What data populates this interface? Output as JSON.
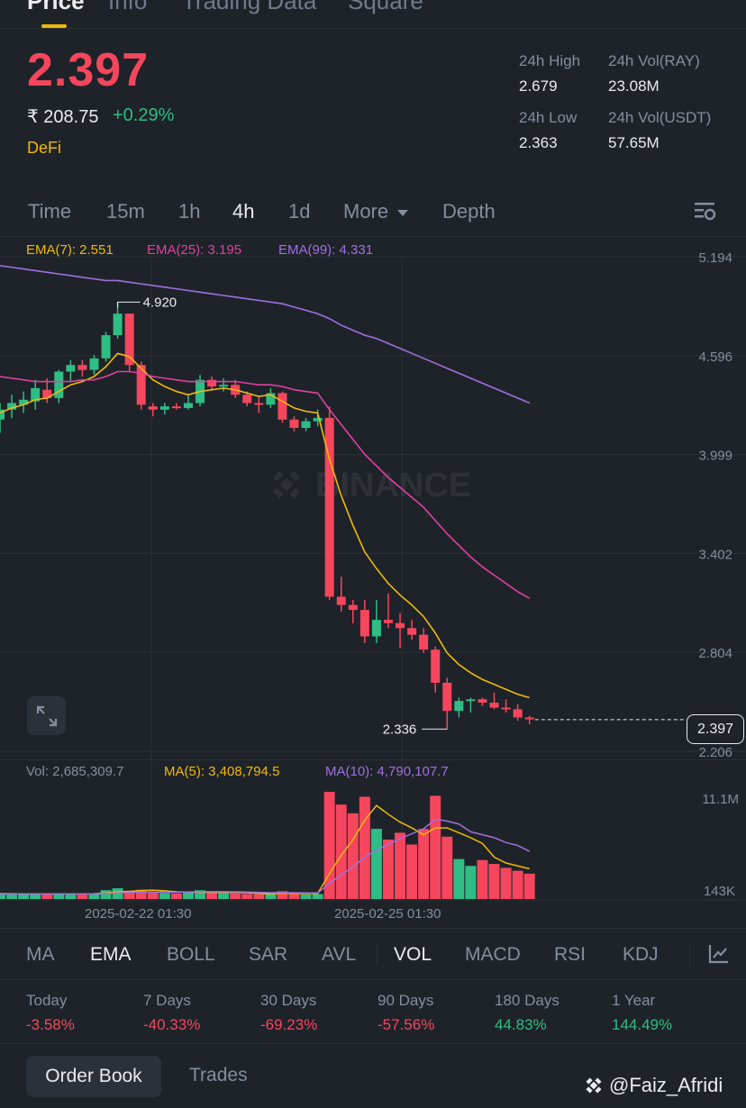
{
  "top_tabs": [
    "Price",
    "Info",
    "Trading Data",
    "Square"
  ],
  "ticker": {
    "price": "2.397",
    "inr_price": "₹ 208.75",
    "change": "+0.29%",
    "tag": "DeFi",
    "stats": {
      "high_label": "24h High",
      "high_value": "2.679",
      "vol_ray_label": "24h Vol(RAY)",
      "vol_ray_value": "23.08M",
      "low_label": "24h Low",
      "low_value": "2.363",
      "vol_usdt_label": "24h Vol(USDT)",
      "vol_usdt_value": "57.65M"
    }
  },
  "timeframes": [
    "Time",
    "15m",
    "1h",
    "4h",
    "1d",
    "More",
    "Depth"
  ],
  "active_timeframe": "4h",
  "ema_legend": {
    "ema7": "EMA(7): 2.551",
    "ema25": "EMA(25): 3.195",
    "ema99": "EMA(99): 4.331"
  },
  "colors": {
    "up": "#2ebd85",
    "down": "#f6465d",
    "ema7": "#f0b90b",
    "ema25": "#e040a0",
    "ema99": "#a070e0",
    "background": "#1e2329",
    "accent": "#f0b90b"
  },
  "chart_data": [
    {
      "type": "candlestick",
      "title": "",
      "y_ticks": [
        "5.194",
        "4.596",
        "3.999",
        "3.402",
        "2.804",
        "2.206"
      ],
      "ylim": [
        2.206,
        5.194
      ],
      "x_tick_labels": [
        "2025-02-22 01:30",
        "2025-02-25 01:30"
      ],
      "annotations": {
        "high_marker": "4.920",
        "low_marker": "2.336",
        "last_price": "2.397"
      },
      "candles": [
        {
          "o": 4.21,
          "h": 4.31,
          "l": 4.13,
          "c": 4.27
        },
        {
          "o": 4.27,
          "h": 4.36,
          "l": 4.22,
          "c": 4.31
        },
        {
          "o": 4.3,
          "h": 4.38,
          "l": 4.25,
          "c": 4.33
        },
        {
          "o": 4.32,
          "h": 4.45,
          "l": 4.27,
          "c": 4.4
        },
        {
          "o": 4.39,
          "h": 4.46,
          "l": 4.31,
          "c": 4.34
        },
        {
          "o": 4.34,
          "h": 4.51,
          "l": 4.31,
          "c": 4.5
        },
        {
          "o": 4.5,
          "h": 4.57,
          "l": 4.44,
          "c": 4.54
        },
        {
          "o": 4.54,
          "h": 4.57,
          "l": 4.47,
          "c": 4.51
        },
        {
          "o": 4.51,
          "h": 4.6,
          "l": 4.48,
          "c": 4.58
        },
        {
          "o": 4.58,
          "h": 4.74,
          "l": 4.56,
          "c": 4.72
        },
        {
          "o": 4.72,
          "h": 4.92,
          "l": 4.7,
          "c": 4.85
        },
        {
          "o": 4.85,
          "h": 4.85,
          "l": 4.5,
          "c": 4.54
        },
        {
          "o": 4.54,
          "h": 4.56,
          "l": 4.27,
          "c": 4.3
        },
        {
          "o": 4.29,
          "h": 4.31,
          "l": 4.23,
          "c": 4.27
        },
        {
          "o": 4.27,
          "h": 4.31,
          "l": 4.24,
          "c": 4.29
        },
        {
          "o": 4.29,
          "h": 4.31,
          "l": 4.27,
          "c": 4.28
        },
        {
          "o": 4.28,
          "h": 4.36,
          "l": 4.27,
          "c": 4.31
        },
        {
          "o": 4.31,
          "h": 4.48,
          "l": 4.29,
          "c": 4.45
        },
        {
          "o": 4.45,
          "h": 4.47,
          "l": 4.39,
          "c": 4.41
        },
        {
          "o": 4.41,
          "h": 4.46,
          "l": 4.38,
          "c": 4.42
        },
        {
          "o": 4.42,
          "h": 4.45,
          "l": 4.34,
          "c": 4.36
        },
        {
          "o": 4.36,
          "h": 4.38,
          "l": 4.29,
          "c": 4.31
        },
        {
          "o": 4.31,
          "h": 4.35,
          "l": 4.25,
          "c": 4.3
        },
        {
          "o": 4.3,
          "h": 4.4,
          "l": 4.28,
          "c": 4.37
        },
        {
          "o": 4.37,
          "h": 4.38,
          "l": 4.19,
          "c": 4.21
        },
        {
          "o": 4.21,
          "h": 4.23,
          "l": 4.14,
          "c": 4.16
        },
        {
          "o": 4.16,
          "h": 4.22,
          "l": 4.14,
          "c": 4.2
        },
        {
          "o": 4.2,
          "h": 4.27,
          "l": 4.17,
          "c": 4.22
        },
        {
          "o": 4.22,
          "h": 4.29,
          "l": 3.12,
          "c": 3.14
        },
        {
          "o": 3.14,
          "h": 3.26,
          "l": 3.05,
          "c": 3.09
        },
        {
          "o": 3.09,
          "h": 3.12,
          "l": 2.98,
          "c": 3.06
        },
        {
          "o": 3.06,
          "h": 3.12,
          "l": 2.86,
          "c": 2.9
        },
        {
          "o": 2.9,
          "h": 3.12,
          "l": 2.86,
          "c": 3.0
        },
        {
          "o": 3.0,
          "h": 3.16,
          "l": 2.95,
          "c": 2.98
        },
        {
          "o": 2.98,
          "h": 3.04,
          "l": 2.83,
          "c": 2.95
        },
        {
          "o": 2.95,
          "h": 3.0,
          "l": 2.88,
          "c": 2.91
        },
        {
          "o": 2.91,
          "h": 2.95,
          "l": 2.8,
          "c": 2.82
        },
        {
          "o": 2.82,
          "h": 2.84,
          "l": 2.56,
          "c": 2.62
        },
        {
          "o": 2.62,
          "h": 2.65,
          "l": 2.34,
          "c": 2.45
        },
        {
          "o": 2.45,
          "h": 2.53,
          "l": 2.41,
          "c": 2.51
        },
        {
          "o": 2.51,
          "h": 2.53,
          "l": 2.44,
          "c": 2.52
        },
        {
          "o": 2.52,
          "h": 2.53,
          "l": 2.48,
          "c": 2.5
        },
        {
          "o": 2.5,
          "h": 2.56,
          "l": 2.46,
          "c": 2.47
        },
        {
          "o": 2.47,
          "h": 2.52,
          "l": 2.44,
          "c": 2.46
        },
        {
          "o": 2.46,
          "h": 2.49,
          "l": 2.39,
          "c": 2.41
        },
        {
          "o": 2.41,
          "h": 2.42,
          "l": 2.37,
          "c": 2.4
        }
      ],
      "series": [
        {
          "name": "EMA(7)",
          "values": [
            4.25,
            4.28,
            4.3,
            4.33,
            4.34,
            4.38,
            4.42,
            4.44,
            4.47,
            4.53,
            4.61,
            4.59,
            4.52,
            4.45,
            4.41,
            4.38,
            4.36,
            4.38,
            4.39,
            4.4,
            4.39,
            4.37,
            4.35,
            4.36,
            4.32,
            4.28,
            4.26,
            4.25,
            3.97,
            3.75,
            3.57,
            3.41,
            3.31,
            3.22,
            3.15,
            3.09,
            3.02,
            2.92,
            2.8,
            2.73,
            2.68,
            2.64,
            2.61,
            2.58,
            2.55,
            2.53
          ]
        },
        {
          "name": "EMA(25)",
          "values": [
            4.47,
            4.46,
            4.45,
            4.44,
            4.44,
            4.44,
            4.44,
            4.45,
            4.45,
            4.47,
            4.5,
            4.5,
            4.49,
            4.47,
            4.46,
            4.45,
            4.44,
            4.44,
            4.44,
            4.44,
            4.44,
            4.43,
            4.42,
            4.42,
            4.41,
            4.39,
            4.38,
            4.37,
            4.27,
            4.18,
            4.09,
            4.0,
            3.93,
            3.86,
            3.8,
            3.74,
            3.68,
            3.6,
            3.52,
            3.45,
            3.38,
            3.32,
            3.27,
            3.22,
            3.17,
            3.13
          ]
        },
        {
          "name": "EMA(99)",
          "values": [
            5.14,
            5.13,
            5.12,
            5.11,
            5.1,
            5.09,
            5.08,
            5.07,
            5.06,
            5.05,
            5.05,
            5.04,
            5.03,
            5.02,
            5.01,
            5.0,
            4.99,
            4.98,
            4.97,
            4.96,
            4.95,
            4.94,
            4.93,
            4.92,
            4.91,
            4.89,
            4.87,
            4.85,
            4.82,
            4.78,
            4.75,
            4.72,
            4.7,
            4.67,
            4.64,
            4.61,
            4.58,
            4.55,
            4.52,
            4.49,
            4.46,
            4.43,
            4.4,
            4.37,
            4.34,
            4.31
          ]
        }
      ]
    },
    {
      "type": "bar",
      "title": "",
      "y_ticks": [
        "11.1M",
        "143K"
      ],
      "ylim": [
        0,
        11100000
      ],
      "values": [
        500000,
        520000,
        480000,
        550000,
        480000,
        600000,
        520000,
        510000,
        560000,
        900000,
        1100000,
        850000,
        950000,
        700000,
        620000,
        580000,
        650000,
        900000,
        620000,
        580000,
        560000,
        520000,
        480000,
        550000,
        800000,
        560000,
        480000,
        520000,
        11000000,
        9700000,
        8800000,
        10500000,
        7200000,
        6100000,
        6800000,
        5600000,
        7200000,
        10600000,
        6400000,
        4100000,
        3400000,
        4000000,
        3600000,
        3200000,
        2900000,
        2600000
      ],
      "series": [
        {
          "name": "MA(5)",
          "values": [
            550000,
            540000,
            520000,
            520000,
            520000,
            530000,
            530000,
            530000,
            540000,
            620000,
            720000,
            790000,
            870000,
            900000,
            840000,
            740000,
            700000,
            690000,
            670000,
            660000,
            660000,
            650000,
            550000,
            540000,
            580000,
            580000,
            570000,
            580000,
            2600000,
            4500000,
            6100000,
            8100000,
            9600000,
            8700000,
            7900000,
            7300000,
            6600000,
            7300000,
            7300000,
            6800000,
            6300000,
            5700000,
            4300000,
            3700000,
            3400000,
            3100000
          ]
        },
        {
          "name": "MA(10)",
          "values": [
            520000,
            520000,
            520000,
            520000,
            520000,
            530000,
            530000,
            530000,
            530000,
            570000,
            630000,
            660000,
            700000,
            710000,
            710000,
            710000,
            720000,
            750000,
            750000,
            750000,
            740000,
            720000,
            680000,
            650000,
            650000,
            650000,
            630000,
            620000,
            1600000,
            2500000,
            3300000,
            4300000,
            5000000,
            5600000,
            6200000,
            6700000,
            7200000,
            8200000,
            8000000,
            7700000,
            6900000,
            6600000,
            6300000,
            5800000,
            5500000,
            4900000
          ]
        }
      ]
    }
  ],
  "vol_legend": {
    "vol": "Vol: 2,685,309.7",
    "ma5": "MA(5): 3,408,794.5",
    "ma10": "MA(10): 4,790,107.7"
  },
  "indicators": [
    "MA",
    "EMA",
    "BOLL",
    "SAR",
    "AVL",
    "VOL",
    "MACD",
    "RSI",
    "KDJ"
  ],
  "active_indicators": [
    "EMA",
    "VOL"
  ],
  "performance": [
    {
      "label": "Today",
      "value": "-3.58%",
      "direction": "down"
    },
    {
      "label": "7 Days",
      "value": "-40.33%",
      "direction": "down"
    },
    {
      "label": "30 Days",
      "value": "-69.23%",
      "direction": "down"
    },
    {
      "label": "90 Days",
      "value": "-57.56%",
      "direction": "down"
    },
    {
      "label": "180 Days",
      "value": "44.83%",
      "direction": "up"
    },
    {
      "label": "1 Year",
      "value": "144.49%",
      "direction": "up"
    }
  ],
  "bottom_tabs": {
    "order_book": "Order Book",
    "trades": "Trades"
  },
  "watermark": "BINANCE",
  "credit": "@Faiz_Afridi"
}
